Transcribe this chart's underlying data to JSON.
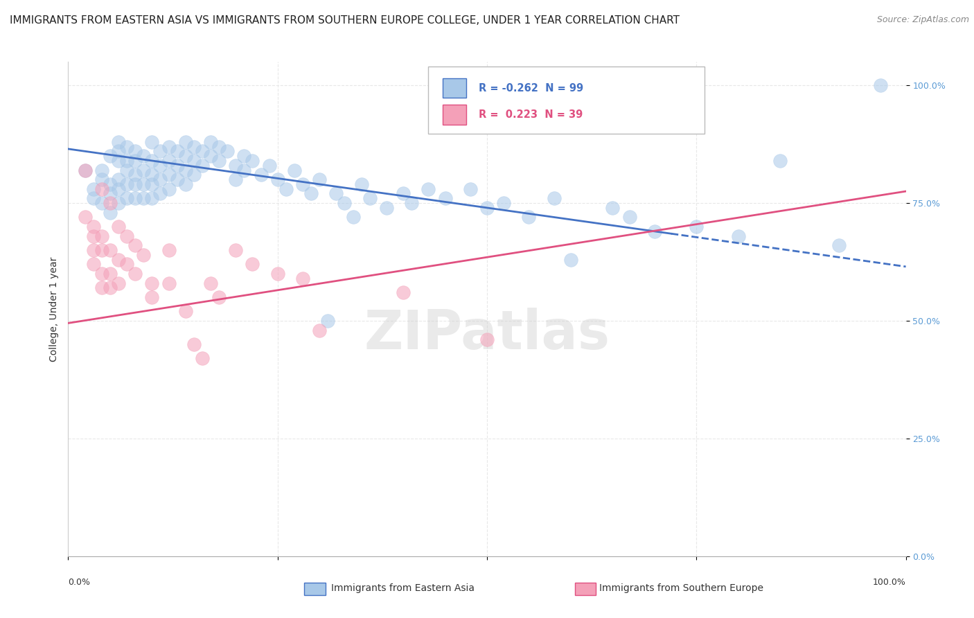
{
  "title": "IMMIGRANTS FROM EASTERN ASIA VS IMMIGRANTS FROM SOUTHERN EUROPE COLLEGE, UNDER 1 YEAR CORRELATION CHART",
  "source": "Source: ZipAtlas.com",
  "ylabel": "College, Under 1 year",
  "legend_label1": "Immigrants from Eastern Asia",
  "legend_label2": "Immigrants from Southern Europe",
  "r1": "-0.262",
  "n1": "99",
  "r2": "0.223",
  "n2": "39",
  "blue_color": "#a8c8e8",
  "blue_line_color": "#4472c4",
  "pink_color": "#f4a0b8",
  "pink_line_color": "#e05080",
  "watermark": "ZIPatlas",
  "blue_scatter": [
    [
      0.02,
      0.82
    ],
    [
      0.03,
      0.78
    ],
    [
      0.03,
      0.76
    ],
    [
      0.04,
      0.82
    ],
    [
      0.04,
      0.8
    ],
    [
      0.04,
      0.75
    ],
    [
      0.05,
      0.85
    ],
    [
      0.05,
      0.79
    ],
    [
      0.05,
      0.77
    ],
    [
      0.05,
      0.73
    ],
    [
      0.06,
      0.88
    ],
    [
      0.06,
      0.86
    ],
    [
      0.06,
      0.84
    ],
    [
      0.06,
      0.8
    ],
    [
      0.06,
      0.78
    ],
    [
      0.06,
      0.75
    ],
    [
      0.07,
      0.87
    ],
    [
      0.07,
      0.84
    ],
    [
      0.07,
      0.82
    ],
    [
      0.07,
      0.79
    ],
    [
      0.07,
      0.76
    ],
    [
      0.08,
      0.86
    ],
    [
      0.08,
      0.84
    ],
    [
      0.08,
      0.81
    ],
    [
      0.08,
      0.79
    ],
    [
      0.08,
      0.76
    ],
    [
      0.09,
      0.85
    ],
    [
      0.09,
      0.82
    ],
    [
      0.09,
      0.79
    ],
    [
      0.09,
      0.76
    ],
    [
      0.1,
      0.88
    ],
    [
      0.1,
      0.84
    ],
    [
      0.1,
      0.81
    ],
    [
      0.1,
      0.79
    ],
    [
      0.1,
      0.76
    ],
    [
      0.11,
      0.86
    ],
    [
      0.11,
      0.83
    ],
    [
      0.11,
      0.8
    ],
    [
      0.11,
      0.77
    ],
    [
      0.12,
      0.87
    ],
    [
      0.12,
      0.84
    ],
    [
      0.12,
      0.81
    ],
    [
      0.12,
      0.78
    ],
    [
      0.13,
      0.86
    ],
    [
      0.13,
      0.83
    ],
    [
      0.13,
      0.8
    ],
    [
      0.14,
      0.88
    ],
    [
      0.14,
      0.85
    ],
    [
      0.14,
      0.82
    ],
    [
      0.14,
      0.79
    ],
    [
      0.15,
      0.87
    ],
    [
      0.15,
      0.84
    ],
    [
      0.15,
      0.81
    ],
    [
      0.16,
      0.86
    ],
    [
      0.16,
      0.83
    ],
    [
      0.17,
      0.88
    ],
    [
      0.17,
      0.85
    ],
    [
      0.18,
      0.87
    ],
    [
      0.18,
      0.84
    ],
    [
      0.19,
      0.86
    ],
    [
      0.2,
      0.83
    ],
    [
      0.2,
      0.8
    ],
    [
      0.21,
      0.85
    ],
    [
      0.21,
      0.82
    ],
    [
      0.22,
      0.84
    ],
    [
      0.23,
      0.81
    ],
    [
      0.24,
      0.83
    ],
    [
      0.25,
      0.8
    ],
    [
      0.26,
      0.78
    ],
    [
      0.27,
      0.82
    ],
    [
      0.28,
      0.79
    ],
    [
      0.29,
      0.77
    ],
    [
      0.3,
      0.8
    ],
    [
      0.31,
      0.5
    ],
    [
      0.32,
      0.77
    ],
    [
      0.33,
      0.75
    ],
    [
      0.34,
      0.72
    ],
    [
      0.35,
      0.79
    ],
    [
      0.36,
      0.76
    ],
    [
      0.38,
      0.74
    ],
    [
      0.4,
      0.77
    ],
    [
      0.41,
      0.75
    ],
    [
      0.43,
      0.78
    ],
    [
      0.45,
      0.76
    ],
    [
      0.48,
      0.78
    ],
    [
      0.5,
      0.74
    ],
    [
      0.52,
      0.75
    ],
    [
      0.55,
      0.72
    ],
    [
      0.58,
      0.76
    ],
    [
      0.6,
      0.63
    ],
    [
      0.65,
      0.74
    ],
    [
      0.67,
      0.72
    ],
    [
      0.7,
      0.69
    ],
    [
      0.75,
      0.7
    ],
    [
      0.8,
      0.68
    ],
    [
      0.85,
      0.84
    ],
    [
      0.92,
      0.66
    ],
    [
      0.97,
      1.0
    ]
  ],
  "pink_scatter": [
    [
      0.02,
      0.82
    ],
    [
      0.02,
      0.72
    ],
    [
      0.03,
      0.7
    ],
    [
      0.03,
      0.68
    ],
    [
      0.03,
      0.65
    ],
    [
      0.03,
      0.62
    ],
    [
      0.04,
      0.78
    ],
    [
      0.04,
      0.68
    ],
    [
      0.04,
      0.65
    ],
    [
      0.04,
      0.6
    ],
    [
      0.04,
      0.57
    ],
    [
      0.05,
      0.75
    ],
    [
      0.05,
      0.65
    ],
    [
      0.05,
      0.6
    ],
    [
      0.05,
      0.57
    ],
    [
      0.06,
      0.7
    ],
    [
      0.06,
      0.63
    ],
    [
      0.06,
      0.58
    ],
    [
      0.07,
      0.68
    ],
    [
      0.07,
      0.62
    ],
    [
      0.08,
      0.66
    ],
    [
      0.08,
      0.6
    ],
    [
      0.09,
      0.64
    ],
    [
      0.1,
      0.58
    ],
    [
      0.1,
      0.55
    ],
    [
      0.12,
      0.65
    ],
    [
      0.12,
      0.58
    ],
    [
      0.14,
      0.52
    ],
    [
      0.15,
      0.45
    ],
    [
      0.16,
      0.42
    ],
    [
      0.17,
      0.58
    ],
    [
      0.18,
      0.55
    ],
    [
      0.2,
      0.65
    ],
    [
      0.22,
      0.62
    ],
    [
      0.25,
      0.6
    ],
    [
      0.28,
      0.59
    ],
    [
      0.3,
      0.48
    ],
    [
      0.4,
      0.56
    ],
    [
      0.5,
      0.46
    ]
  ],
  "blue_line_x": [
    0.0,
    1.0
  ],
  "blue_line_y": [
    0.865,
    0.615
  ],
  "blue_line_solid_end": 0.72,
  "pink_line_x": [
    0.0,
    1.0
  ],
  "pink_line_y": [
    0.495,
    0.775
  ],
  "yticks": [
    0.0,
    0.25,
    0.5,
    0.75,
    1.0
  ],
  "ytick_labels": [
    "0.0%",
    "25.0%",
    "50.0%",
    "75.0%",
    "100.0%"
  ],
  "xlim": [
    0.0,
    1.0
  ],
  "ylim": [
    0.0,
    1.05
  ],
  "background_color": "#ffffff",
  "grid_color": "#e8e8e8",
  "title_fontsize": 11,
  "axis_label_fontsize": 10
}
